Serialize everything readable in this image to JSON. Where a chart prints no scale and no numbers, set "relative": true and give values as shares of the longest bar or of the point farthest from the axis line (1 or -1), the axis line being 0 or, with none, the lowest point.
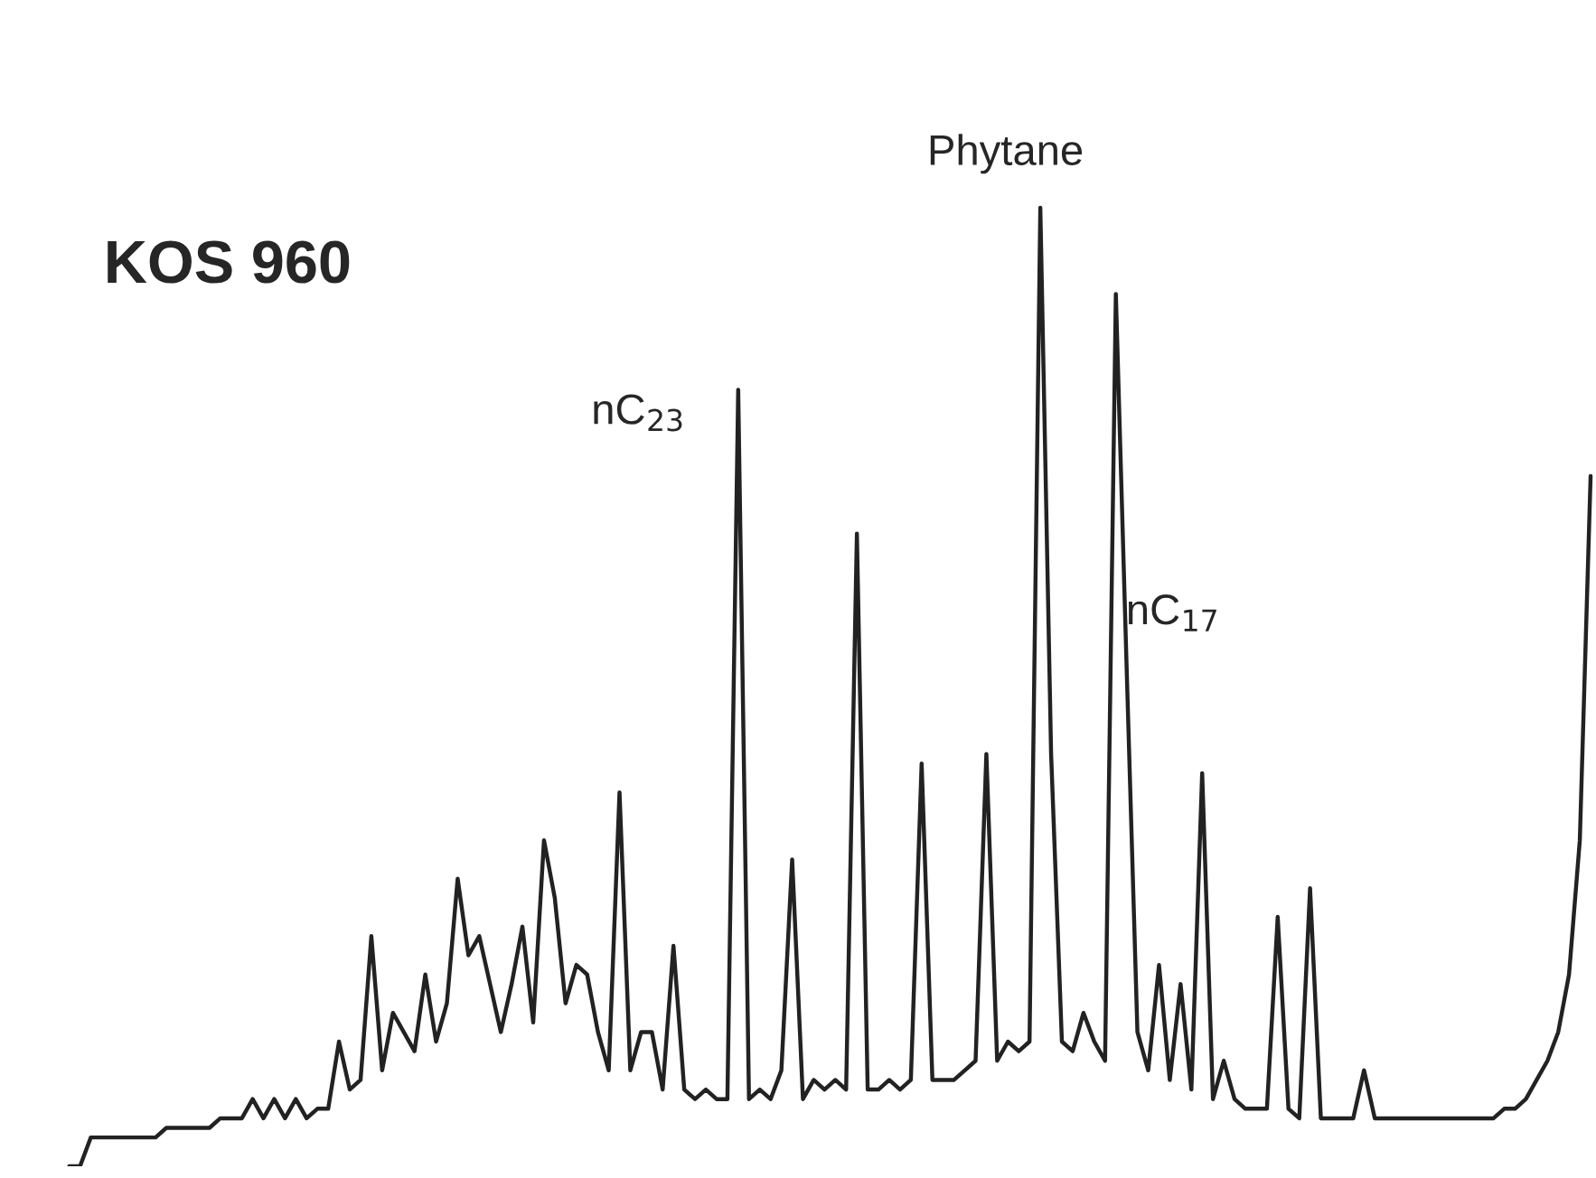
{
  "chart_data": {
    "type": "line",
    "title": "KOS 960",
    "relative": true,
    "grid": false,
    "legend": false,
    "annotations": [
      "nC$_{23}$",
      "Phytane",
      "nC$_{17}$"
    ],
    "categories": [
      null,
      null,
      null,
      null,
      null,
      null,
      null,
      null,
      null,
      null,
      null,
      null,
      null,
      null,
      null,
      null,
      null,
      null,
      null,
      null,
      null,
      null,
      null,
      null,
      null,
      null,
      null,
      null,
      null,
      null,
      null,
      null,
      null,
      null,
      null,
      null,
      null,
      null,
      null,
      null,
      null,
      null,
      null,
      null,
      null,
      null,
      null,
      null,
      null,
      null,
      null,
      null,
      null,
      null,
      null,
      null,
      null,
      null,
      null,
      null,
      null,
      null,
      null,
      null,
      null,
      null,
      null,
      null,
      null,
      null,
      null,
      null,
      null,
      null,
      null,
      null,
      null,
      null,
      null,
      null,
      null,
      null,
      null,
      null,
      null,
      null,
      null,
      null,
      null,
      null,
      null,
      null,
      null,
      null,
      null,
      null,
      null,
      null,
      null,
      null,
      null,
      null,
      null,
      null,
      null,
      null,
      null,
      null,
      null,
      null,
      null,
      null,
      null,
      null,
      null,
      null,
      null,
      null,
      null,
      null,
      null,
      null,
      null,
      null,
      null,
      null,
      null,
      null,
      null,
      null,
      null,
      null,
      null,
      null,
      null,
      null,
      null,
      null,
      null,
      null,
      null,
      null
    ],
    "series": [
      {
        "color": "#222222",
        "values": [
          0,
          0,
          0.03,
          0.03,
          0.03,
          0.03,
          0.03,
          0.03,
          0.03,
          0.04,
          0.04,
          0.04,
          0.04,
          0.04,
          0.05,
          0.05,
          0.05,
          0.07,
          0.05,
          0.07,
          0.05,
          0.07,
          0.05,
          0.06,
          0.06,
          0.13,
          0.08,
          0.09,
          0.24,
          0.1,
          0.16,
          0.14,
          0.12,
          0.2,
          0.13,
          0.17,
          0.3,
          0.22,
          0.24,
          0.19,
          0.14,
          0.19,
          0.25,
          0.15,
          0.34,
          0.28,
          0.17,
          0.21,
          0.2,
          0.14,
          0.1,
          0.39,
          0.1,
          0.14,
          0.14,
          0.08,
          0.23,
          0.08,
          0.07,
          0.08,
          0.07,
          0.07,
          0.81,
          0.07,
          0.08,
          0.07,
          0.1,
          0.32,
          0.07,
          0.09,
          0.08,
          0.09,
          0.08,
          0.66,
          0.08,
          0.08,
          0.09,
          0.08,
          0.09,
          0.42,
          0.09,
          0.09,
          0.09,
          0.1,
          0.11,
          0.43,
          0.11,
          0.13,
          0.12,
          0.13,
          1.0,
          0.43,
          0.13,
          0.12,
          0.16,
          0.13,
          0.11,
          0.91,
          0.52,
          0.14,
          0.1,
          0.21,
          0.09,
          0.19,
          0.08,
          0.41,
          0.07,
          0.11,
          0.07,
          0.06,
          0.06,
          0.06,
          0.26,
          0.06,
          0.05,
          0.29,
          0.05,
          0.05,
          0.05,
          0.05,
          0.1,
          0.05,
          0.05,
          0.05,
          0.05,
          0.05,
          0.05,
          0.05,
          0.05,
          0.05,
          0.05,
          0.05,
          0.05,
          0.06,
          0.06,
          0.07,
          0.09,
          0.11,
          0.14,
          0.2,
          0.34,
          0.72
        ]
      }
    ]
  }
}
